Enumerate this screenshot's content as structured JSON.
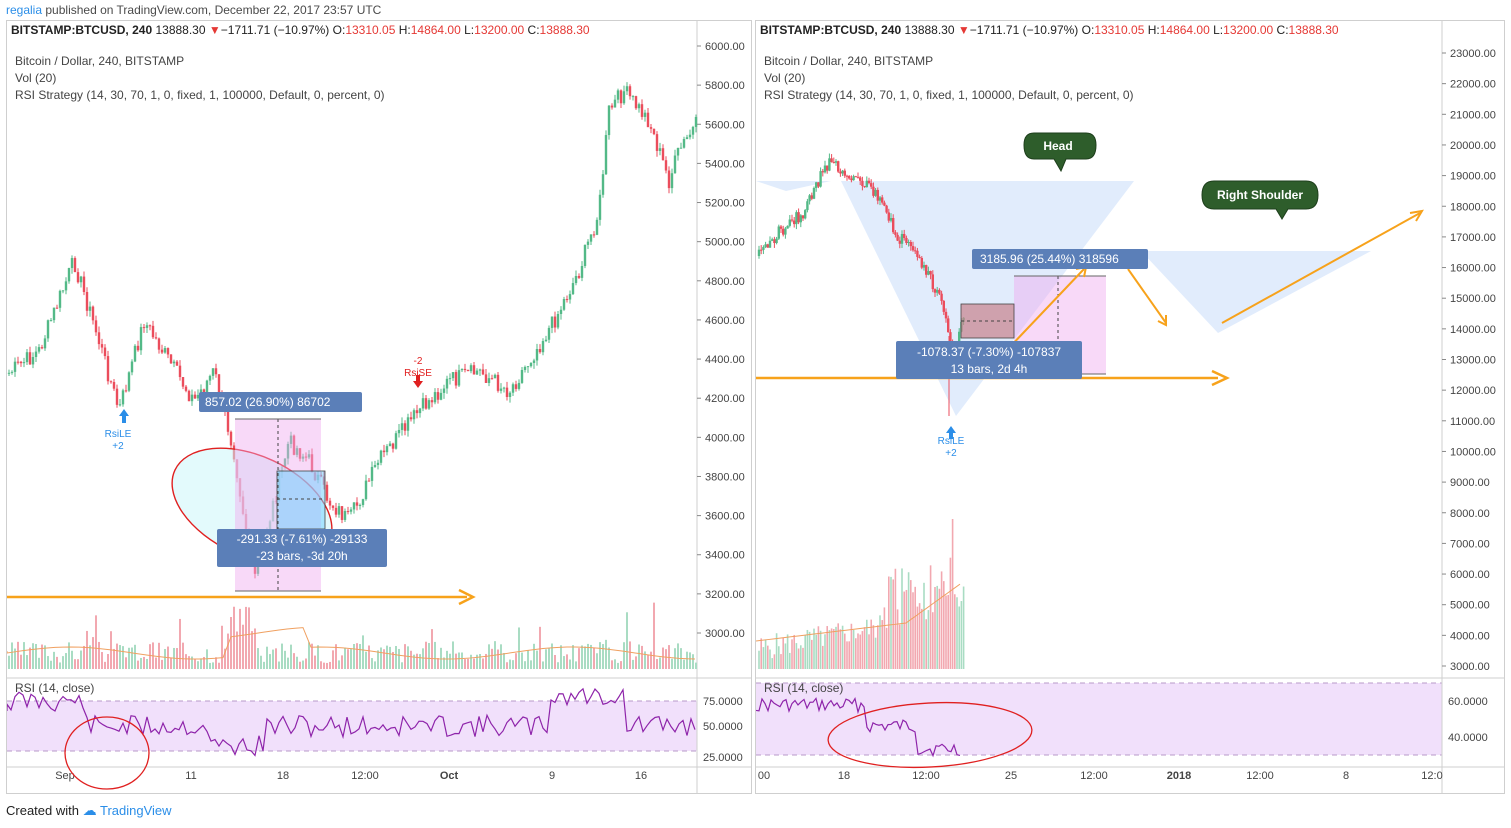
{
  "header": {
    "user": "regalia",
    "text": "published on TradingView.com, December 22, 2017 23:57 UTC"
  },
  "symbol_line": {
    "symbol": "BITSTAMP:BTCUSD, 240",
    "price": "13888.30",
    "arrow": "▼",
    "change": "−1711.71 (−10.97%)",
    "o_label": "O:",
    "o_val": "13310.05",
    "h_label": "H:",
    "h_val": "14864.00",
    "l_label": "L:",
    "l_val": "13200.00",
    "c_label": "C:",
    "c_val": "13888.30"
  },
  "legend": {
    "title": "Bitcoin / Dollar, 240, BITSTAMP",
    "vol": "Vol (20)",
    "strategy": "RSI Strategy (14, 30, 70, 1, 0, fixed, 1, 100000, Default, 0, percent, 0)",
    "rsi": "RSI (14, close)"
  },
  "left_chart": {
    "price_ticks": [
      "6000.00",
      "5800.00",
      "5600.00",
      "5400.00",
      "5200.00",
      "5000.00",
      "4800.00",
      "4600.00",
      "4400.00",
      "4200.00",
      "4000.00",
      "3800.00",
      "3600.00",
      "3400.00",
      "3200.00",
      "3000.00"
    ],
    "rsi_ticks": [
      "75.0000",
      "50.0000",
      "25.0000"
    ],
    "time_ticks": [
      "Sep",
      "11",
      "18",
      "12:00",
      "Oct",
      "9",
      "16"
    ],
    "box_top": "857.02 (26.90%) 86702",
    "box_bot1": "-291.33 (-7.61%) -29133",
    "box_bot2": "-23 bars, -3d 20h",
    "signal_le": "RsiLE",
    "signal_le_qty": "+2",
    "signal_se": "RsiSE",
    "signal_se_qty": "-2"
  },
  "right_chart": {
    "price_ticks": [
      "23000.00",
      "22000.00",
      "21000.00",
      "20000.00",
      "19000.00",
      "18000.00",
      "17000.00",
      "16000.00",
      "15000.00",
      "14000.00",
      "13000.00",
      "12000.00",
      "11000.00",
      "10000.00",
      "9000.00",
      "8000.00",
      "7000.00",
      "6000.00",
      "5000.00",
      "4000.00",
      "3000.00"
    ],
    "rsi_ticks": [
      "60.0000",
      "40.0000"
    ],
    "time_ticks": [
      "00",
      "18",
      "12:00",
      "25",
      "12:00",
      "2018",
      "12:00",
      "8",
      "12:0"
    ],
    "head": "Head",
    "right_shoulder": "Right Shoulder",
    "box_top": "3185.96 (25.44%) 318596",
    "box_bot1": "-1078.37 (-7.30%) -107837",
    "box_bot2": "13 bars, 2d 4h",
    "signal_le": "RsiLE",
    "signal_le_qty": "+2"
  },
  "footer": {
    "created": "Created with",
    "brand": "TradingView"
  },
  "colors": {
    "up": "#53b987",
    "down": "#eb4d5c",
    "orange": "#f7a21b",
    "label_bg": "#5b7fb8",
    "rsi": "#8e24aa",
    "band": "#f1e0fb"
  }
}
